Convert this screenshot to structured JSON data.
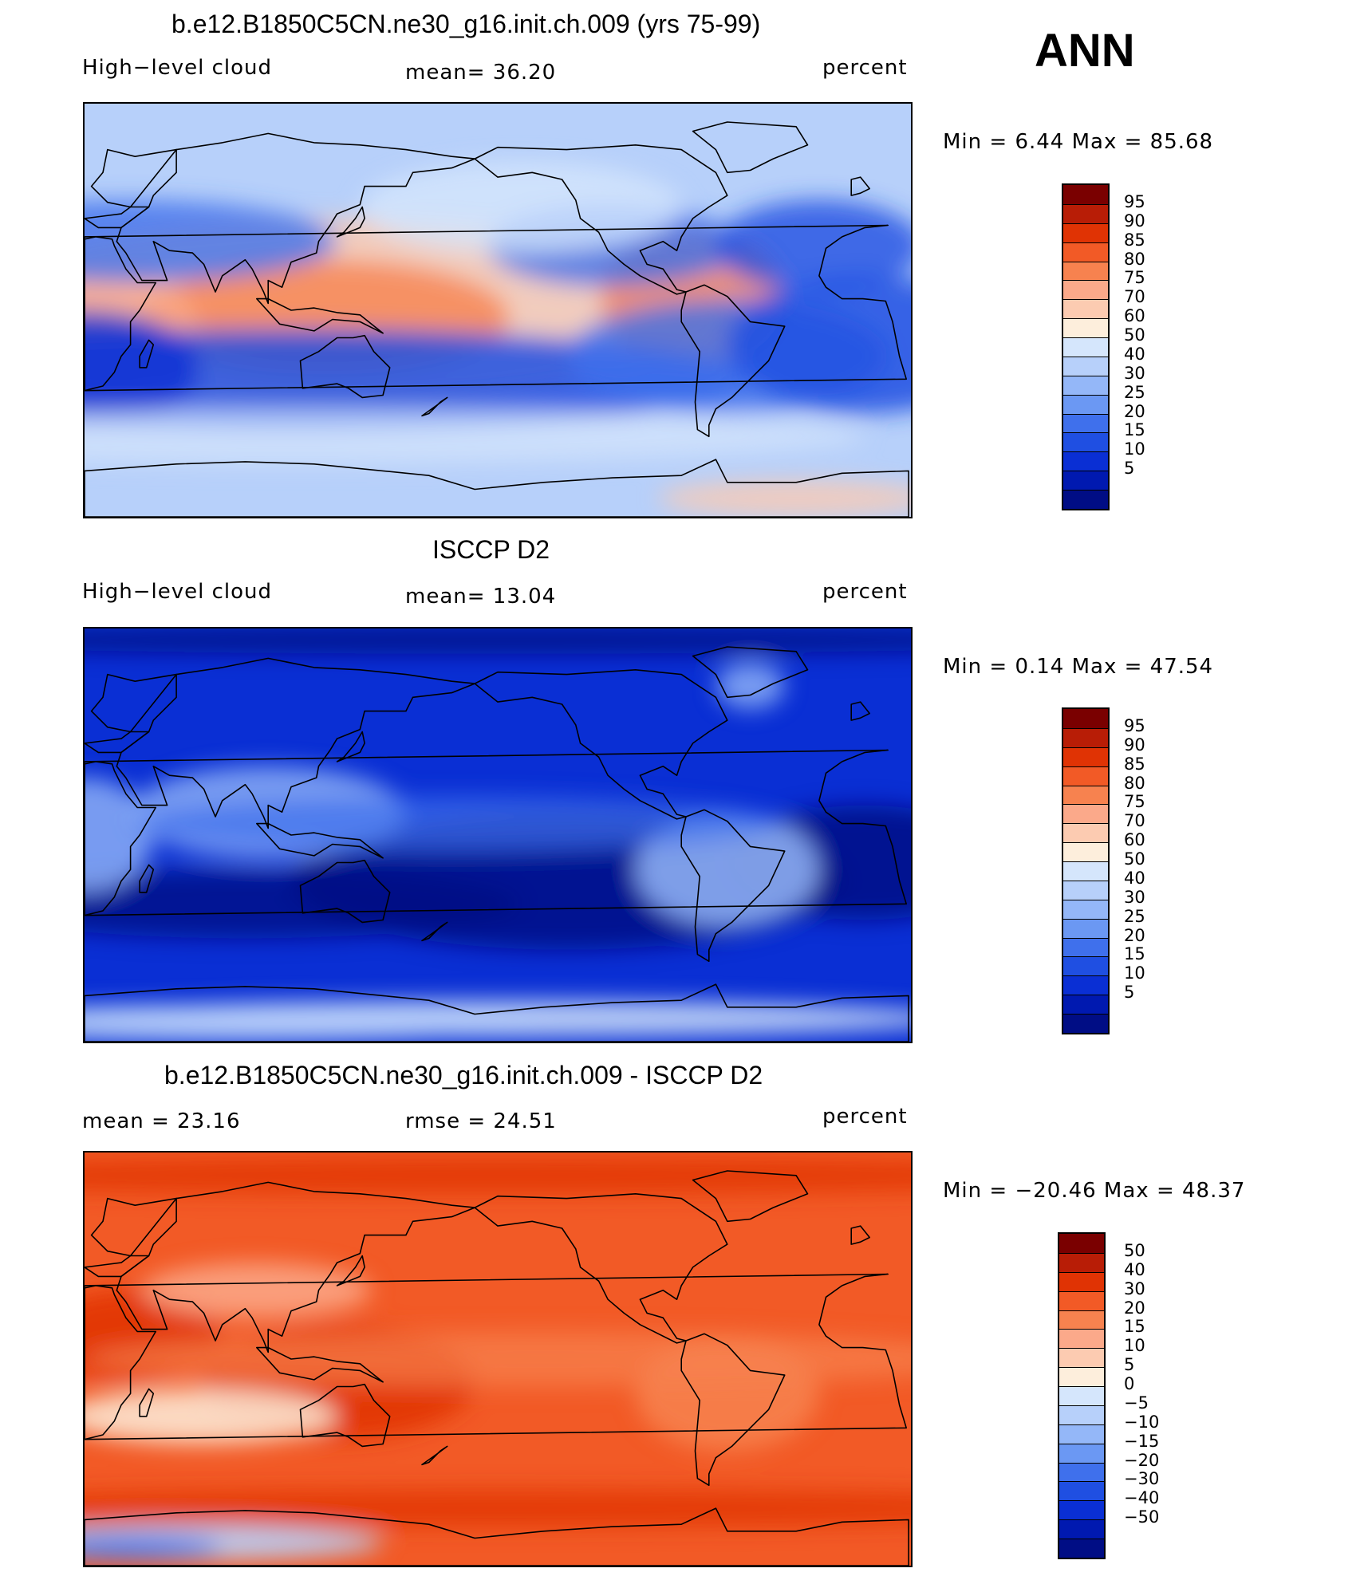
{
  "season": "ANN",
  "panels": [
    {
      "title": "b.e12.B1850C5CN.ne30_g16.init.ch.009 (yrs 75-99)",
      "left_label": "High−level cloud",
      "mid_label": "mean=   36.20",
      "right_label": "percent",
      "minmax": "Min =    6.44  Max =   85.68",
      "scheme": "abs",
      "base_color": "#b7d0fa"
    },
    {
      "title": "ISCCP D2",
      "left_label": "High−level cloud",
      "mid_label": "mean=   13.04",
      "right_label": "percent",
      "minmax": "Min =    0.14  Max =   47.54",
      "scheme": "abs",
      "base_color": "#0a2fd4"
    },
    {
      "title": "b.e12.B1850C5CN.ne30_g16.init.ch.009 - ISCCP D2",
      "left_label": "mean  =   23.16",
      "mid_label": "rmse  =   24.51",
      "right_label": "percent",
      "minmax": "Min = −20.46  Max =   48.37",
      "scheme": "diff",
      "base_color": "#f25a26"
    }
  ],
  "colorbars": {
    "abs": {
      "colors": [
        "#7a0000",
        "#b81d06",
        "#e03304",
        "#f25a26",
        "#f7824f",
        "#fba98a",
        "#fccbb1",
        "#fdeedc",
        "#d5e6fc",
        "#b7d0fa",
        "#94b7f8",
        "#6b98f3",
        "#3f70ec",
        "#1f4fe2",
        "#0a2fd4",
        "#0019b0",
        "#000d85"
      ],
      "labels": [
        "95",
        "90",
        "85",
        "80",
        "75",
        "70",
        "60",
        "50",
        "40",
        "30",
        "25",
        "20",
        "15",
        "10",
        "5"
      ]
    },
    "diff": {
      "colors": [
        "#7a0000",
        "#b81d06",
        "#e03304",
        "#f25a26",
        "#f7824f",
        "#fba98a",
        "#fccbb1",
        "#fdeedc",
        "#d5e6fc",
        "#b7d0fa",
        "#94b7f8",
        "#6b98f3",
        "#3f70ec",
        "#1f4fe2",
        "#0a2fd4",
        "#0019b0",
        "#000d85"
      ],
      "labels": [
        "50",
        "40",
        "30",
        "20",
        "15",
        "10",
        "5",
        "0",
        "−5",
        "−10",
        "−15",
        "−20",
        "−30",
        "−40",
        "−50"
      ]
    }
  }
}
